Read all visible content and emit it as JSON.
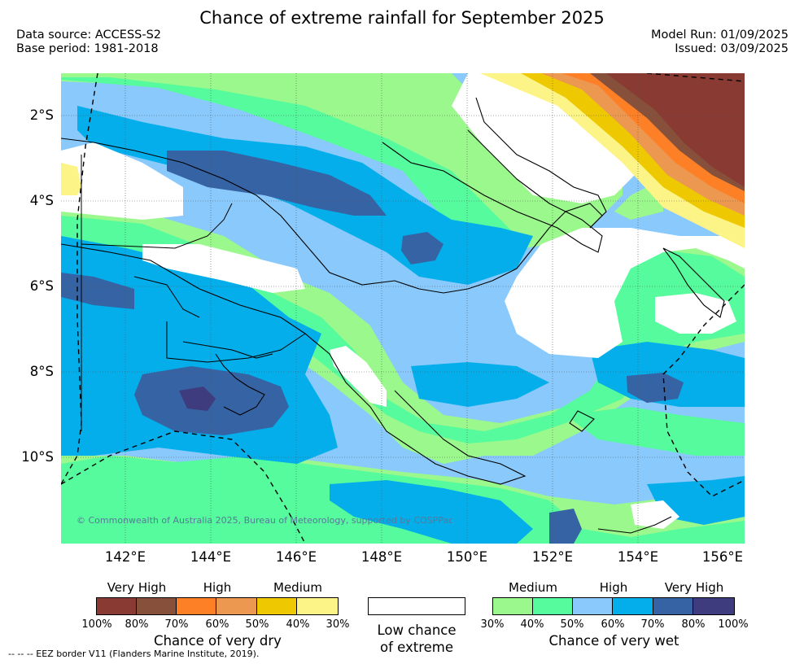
{
  "header": {
    "title": "Chance of extreme rainfall for September 2025",
    "data_source": "Data source: ACCESS-S2",
    "base_period": "Base period: 1981-2018",
    "model_run": "Model Run: 01/09/2025",
    "issued": "Issued: 03/09/2025"
  },
  "map": {
    "lat_labels": [
      "2°S",
      "4°S",
      "6°S",
      "8°S",
      "10°S"
    ],
    "lon_labels": [
      "142°E",
      "144°E",
      "146°E",
      "148°E",
      "150°E",
      "152°E",
      "154°E",
      "156°E"
    ],
    "copyright": "© Commonwealth of Australia 2025, Bureau of Meteorology, supported by COSPPac",
    "palette": {
      "wet_30_40": "#9bf88d",
      "wet_40_50": "#55fb9c",
      "wet_50_60": "#89c9fb",
      "wet_60_70": "#03aeea",
      "wet_70_80": "#3663a3",
      "wet_80_100": "#3e3b7e",
      "dry_30_40": "#fcf486",
      "dry_40_50": "#eec902",
      "dry_50_60": "#ec9850",
      "dry_60_70": "#fd7f26",
      "dry_70_80": "#87503a",
      "dry_80_100": "#883a33"
    }
  },
  "legend_dry": {
    "categories": [
      "Very High",
      "High",
      "Medium"
    ],
    "percentages": [
      "100%",
      "80%",
      "70%",
      "60%",
      "50%",
      "40%",
      "30%"
    ],
    "colors": [
      "#883a33",
      "#87503a",
      "#fd7f26",
      "#ec9850",
      "#eec902",
      "#fcf486"
    ],
    "title": "Chance of very dry"
  },
  "legend_low": {
    "line1": "Low chance",
    "line2": "of extreme"
  },
  "legend_wet": {
    "categories": [
      "Medium",
      "High",
      "Very High"
    ],
    "percentages": [
      "30%",
      "40%",
      "50%",
      "60%",
      "70%",
      "80%",
      "100%"
    ],
    "colors": [
      "#9bf88d",
      "#55fb9c",
      "#89c9fb",
      "#03aeea",
      "#3663a3",
      "#3e3b7e"
    ],
    "title": "Chance of very wet"
  },
  "footnote": "--  --  -- EEZ border V11 (Flanders Marine Institute, 2019)."
}
